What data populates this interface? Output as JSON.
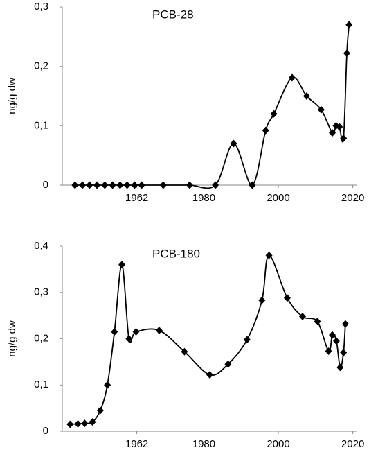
{
  "chart_data": [
    {
      "type": "line",
      "title": "PCB-28",
      "y_label": "ng/g dw",
      "x": [
        1945.4,
        1947.4,
        1949.3,
        1951.3,
        1953.4,
        1955.5,
        1957.5,
        1959.4,
        1961.4,
        1963.3,
        1969.1,
        1976.2,
        1983.1,
        1988.0,
        1993.0,
        1996.6,
        1998.8,
        2003.7,
        2007.6,
        2011.5,
        2014.5,
        2015.5,
        2016.4,
        2017.5,
        2018.4,
        2019.0
      ],
      "series": [
        {
          "name": "PCB-28",
          "color": "#000000",
          "values": [
            0,
            0,
            0,
            0,
            0,
            0,
            0,
            0,
            0,
            0,
            0,
            0,
            0,
            0.07,
            0,
            0.092,
            0.12,
            0.181,
            0.15,
            0.127,
            0.088,
            0.1,
            0.098,
            0.079,
            0.222,
            0.27
          ]
        }
      ],
      "xlim": [
        1942,
        2021
      ],
      "xticks": [
        1962,
        1980,
        2000,
        2020
      ],
      "ylim": [
        0,
        0.3
      ],
      "yticks": [
        0,
        {
          "value": 0.1,
          "label": "0,1"
        },
        {
          "value": 0.2,
          "label": "0,2"
        },
        {
          "value": 0.3,
          "label": "0,3"
        }
      ]
    },
    {
      "type": "line",
      "title": "PCB-180",
      "y_label": "ng/g dw",
      "x": [
        1944.1,
        1946.2,
        1948.0,
        1950.1,
        1952.2,
        1954.1,
        1956.0,
        1958.0,
        1959.9,
        1961.8,
        1968.0,
        1974.8,
        1981.6,
        1986.5,
        1991.6,
        1995.6,
        1997.5,
        2002.4,
        2006.5,
        2010.5,
        2013.5,
        2014.5,
        2015.6,
        2016.6,
        2017.5,
        2018.0
      ],
      "series": [
        {
          "name": "PCB-180",
          "color": "#000000",
          "values": [
            0.015,
            0.016,
            0.017,
            0.02,
            0.045,
            0.1,
            0.215,
            0.36,
            0.2,
            0.215,
            0.218,
            0.172,
            0.122,
            0.145,
            0.198,
            0.283,
            0.38,
            0.288,
            0.248,
            0.237,
            0.173,
            0.208,
            0.195,
            0.138,
            0.17,
            0.232
          ]
        }
      ],
      "xlim": [
        1942,
        2021
      ],
      "xticks": [
        1962,
        1980,
        2000,
        2020
      ],
      "ylim": [
        0,
        0.4
      ],
      "yticks": [
        0,
        {
          "value": 0.1,
          "label": "0,1"
        },
        {
          "value": 0.2,
          "label": "0,2"
        },
        {
          "value": 0.3,
          "label": "0,3"
        },
        {
          "value": 0.4,
          "label": "0,4"
        }
      ]
    }
  ]
}
